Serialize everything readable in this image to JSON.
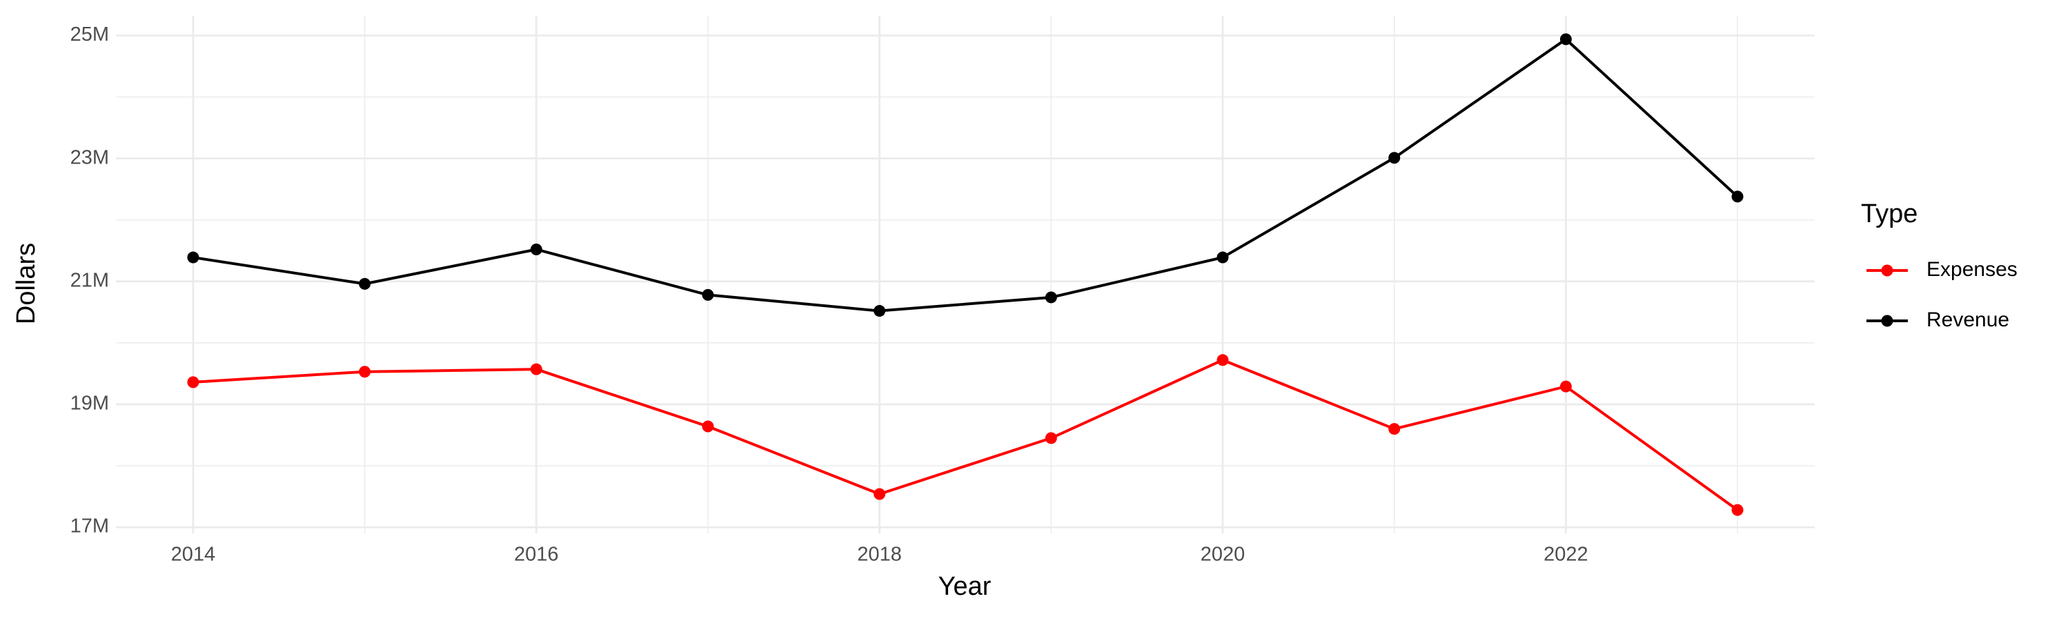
{
  "chart_data": {
    "type": "line",
    "x_label": "Year",
    "y_label": "Dollars",
    "legend_title": "Type",
    "legend_position": "right",
    "grid": true,
    "x": [
      2014,
      2015,
      2016,
      2017,
      2018,
      2019,
      2020,
      2021,
      2022,
      2023
    ],
    "series": [
      {
        "name": "Expenses",
        "color": "#ff0000",
        "values": [
          19360000,
          19530000,
          19570000,
          18640000,
          17540000,
          18450000,
          19720000,
          18600000,
          19290000,
          17280000
        ]
      },
      {
        "name": "Revenue",
        "color": "#000000",
        "values": [
          21390000,
          20960000,
          21520000,
          20780000,
          20520000,
          20740000,
          21390000,
          23010000,
          24940000,
          22380000
        ]
      }
    ],
    "xlim": [
      2013.55,
      2023.45
    ],
    "xticks": [
      2014,
      2016,
      2018,
      2020,
      2022
    ],
    "minor_xticks": [
      2015,
      2017,
      2019,
      2021,
      2023
    ],
    "ylim": [
      16900000,
      25320000
    ],
    "yticks": [
      {
        "value": 17000000,
        "label": "17M"
      },
      {
        "value": 19000000,
        "label": "19M"
      },
      {
        "value": 21000000,
        "label": "21M"
      },
      {
        "value": 23000000,
        "label": "23M"
      },
      {
        "value": 25000000,
        "label": "25M"
      }
    ],
    "minor_yticks": [
      18000000,
      20000000,
      22000000,
      24000000
    ]
  }
}
